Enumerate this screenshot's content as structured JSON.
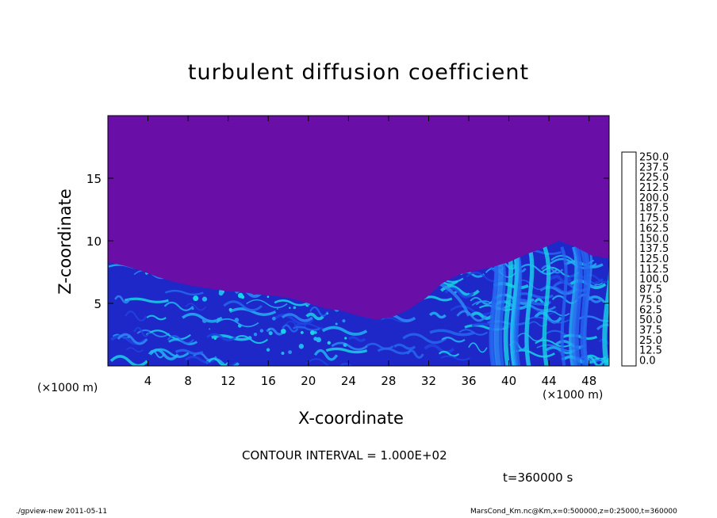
{
  "chart_data": {
    "type": "heatmap",
    "title": "turbulent diffusion coefficient",
    "xlabel": "X-coordinate",
    "ylabel": "Z-coordinate",
    "x_unit": "(×1000 m)",
    "x_unit_right": "(×1000 m)",
    "xlim": [
      0,
      50
    ],
    "ylim": [
      0,
      20
    ],
    "x_ticks": [
      4,
      8,
      12,
      16,
      20,
      24,
      28,
      32,
      36,
      40,
      44,
      48
    ],
    "y_ticks": [
      5,
      10,
      15
    ],
    "colorbar": {
      "levels": [
        "0.0",
        "12.5",
        "25.0",
        "37.5",
        "50.0",
        "62.5",
        "75.0",
        "87.5",
        "100.0",
        "112.5",
        "125.0",
        "137.5",
        "150.0",
        "162.5",
        "175.0",
        "187.5",
        "200.0",
        "212.5",
        "225.0",
        "237.5",
        "250.0"
      ],
      "colors": [
        "#6a0ea8",
        "#1c0fa6",
        "#1e27c8",
        "#1f45e2",
        "#2468f0",
        "#2d8bf6",
        "#22b3f3",
        "#18d4e6",
        "#19dcb8",
        "#19d890",
        "#22cd52",
        "#3dd437",
        "#72dc27",
        "#a6e022",
        "#d4e421",
        "#f2e01e",
        "#f8bd1c",
        "#f6941a",
        "#f06a1c",
        "#f04040",
        "#f09090"
      ]
    },
    "contour_interval": "CONTOUR INTERVAL = 1.000E+02",
    "time_label": "t=360000 s",
    "turbulent_top_km": [
      8.3,
      8.0,
      7.6,
      7.1,
      6.7,
      6.4,
      6.2,
      6.0,
      5.9,
      5.7,
      5.6,
      5.4,
      5.0,
      4.6,
      4.4,
      4.0,
      3.7,
      3.9,
      4.5,
      5.4,
      6.6,
      7.3,
      7.6,
      7.9,
      8.3,
      8.9,
      9.4,
      10.0,
      9.5,
      8.8,
      8.6
    ]
  },
  "footer": {
    "left": "./gpview-new   2011-05-11",
    "right": "MarsCond_Km.nc@Km,x=0:500000,z=0:25000,t=360000"
  }
}
